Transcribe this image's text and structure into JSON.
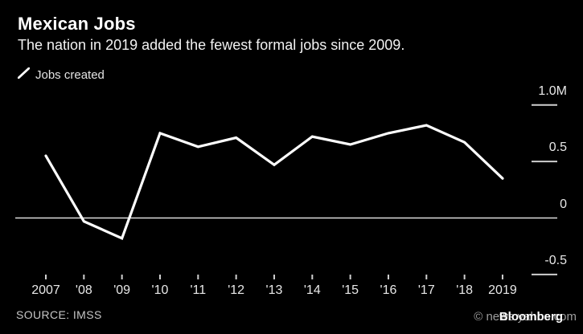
{
  "header": {
    "title": "Mexican Jobs",
    "subtitle": "The nation in 2019 added the fewest formal jobs since 2009."
  },
  "legend": {
    "marker": "diagonal-line-mark",
    "label": "Jobs created"
  },
  "chart_data": {
    "type": "line",
    "title": "Mexican Jobs",
    "subtitle": "The nation in 2019 added the fewest formal jobs since 2009.",
    "unit": "millions of net formal jobs created",
    "categories": [
      "2007",
      "'08",
      "'09",
      "'10",
      "'11",
      "'12",
      "'13",
      "'14",
      "'15",
      "'16",
      "'17",
      "'18",
      "2019"
    ],
    "series": [
      {
        "name": "Jobs created",
        "values": [
          0.55,
          -0.03,
          -0.18,
          0.75,
          0.63,
          0.71,
          0.47,
          0.72,
          0.65,
          0.75,
          0.82,
          0.67,
          0.35
        ]
      }
    ],
    "y_ticks": [
      {
        "label": "1.0M",
        "value": 1.0
      },
      {
        "label": "0.5",
        "value": 0.5
      },
      {
        "label": "0",
        "value": 0
      },
      {
        "label": "-0.5",
        "value": -0.5
      }
    ],
    "ylim": [
      -0.6,
      1.1
    ],
    "grid": "zero-baseline-only",
    "legend_position": "top-left",
    "line_color": "#ffffff",
    "tick_color": "#cfcfcf",
    "background_color": "#000000"
  },
  "footer": {
    "source": "SOURCE: IMSS",
    "watermark_gray": "© news.yahoo.com",
    "watermark_white": "Bloomberg"
  }
}
